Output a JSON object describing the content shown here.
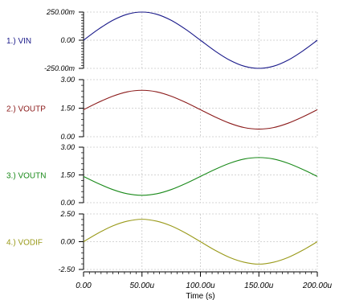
{
  "chart_data": {
    "type": "line",
    "xlabel": "Time (s)",
    "x_ticks": [
      "0.00",
      "50.00u",
      "100.00u",
      "150.00u",
      "200.00u"
    ],
    "x_range": [
      0,
      200
    ],
    "x_unit": "u",
    "grid": true,
    "panels": [
      {
        "label": "1.) VIN",
        "color": "#1a1a8a",
        "ylim": [
          -0.25,
          0.25
        ],
        "y_ticks": [
          "250.00m",
          "0.00",
          "-250.00m"
        ],
        "y_tick_values": [
          0.25,
          0.0,
          -0.25
        ],
        "minor_ticks": true,
        "series": {
          "x": [
            0,
            12.5,
            25,
            37.5,
            50,
            62.5,
            75,
            87.5,
            100,
            112.5,
            125,
            137.5,
            150,
            162.5,
            175,
            187.5,
            200
          ],
          "y": [
            0,
            0.0957,
            0.1768,
            0.231,
            0.25,
            0.231,
            0.1768,
            0.0957,
            0,
            -0.0957,
            -0.1768,
            -0.231,
            -0.25,
            -0.231,
            -0.1768,
            -0.0957,
            0
          ]
        }
      },
      {
        "label": "2.) VOUTP",
        "color": "#8b1a1a",
        "ylim": [
          0,
          3
        ],
        "y_ticks": [
          "3.00",
          "1.50",
          "0.00"
        ],
        "y_tick_values": [
          3.0,
          1.5,
          0.0
        ],
        "minor_ticks": false,
        "series": {
          "x": [
            0,
            12.5,
            25,
            37.5,
            50,
            62.5,
            75,
            87.5,
            100,
            112.5,
            125,
            137.5,
            150,
            162.5,
            175,
            187.5,
            200
          ],
          "y": [
            1.42,
            1.8,
            2.13,
            2.36,
            2.44,
            2.36,
            2.13,
            1.8,
            1.42,
            1.04,
            0.71,
            0.48,
            0.4,
            0.48,
            0.71,
            1.04,
            1.42
          ]
        }
      },
      {
        "label": "3.) VOUTN",
        "color": "#1a8a1a",
        "ylim": [
          0,
          3
        ],
        "y_ticks": [
          "3.00",
          "1.50",
          "0.00"
        ],
        "y_tick_values": [
          3.0,
          1.5,
          0.0
        ],
        "minor_ticks": false,
        "series": {
          "x": [
            0,
            12.5,
            25,
            37.5,
            50,
            62.5,
            75,
            87.5,
            100,
            112.5,
            125,
            137.5,
            150,
            162.5,
            175,
            187.5,
            200
          ],
          "y": [
            1.42,
            1.04,
            0.71,
            0.48,
            0.4,
            0.48,
            0.71,
            1.04,
            1.42,
            1.8,
            2.13,
            2.36,
            2.44,
            2.36,
            2.13,
            1.8,
            1.42
          ]
        }
      },
      {
        "label": "4.) VODIF",
        "color": "#9a9a1a",
        "ylim": [
          -2.5,
          2.5
        ],
        "y_ticks": [
          "2.50",
          "0.00",
          "-2.50"
        ],
        "y_tick_values": [
          2.5,
          0.0,
          -2.5
        ],
        "minor_ticks": false,
        "series": {
          "x": [
            0,
            12.5,
            25,
            37.5,
            50,
            62.5,
            75,
            87.5,
            100,
            112.5,
            125,
            137.5,
            150,
            162.5,
            175,
            187.5,
            200
          ],
          "y": [
            0,
            0.77,
            1.42,
            1.85,
            2.02,
            1.85,
            1.42,
            0.77,
            0,
            -0.77,
            -1.42,
            -1.85,
            -2.02,
            -1.85,
            -1.42,
            -0.77,
            0
          ]
        }
      }
    ]
  }
}
